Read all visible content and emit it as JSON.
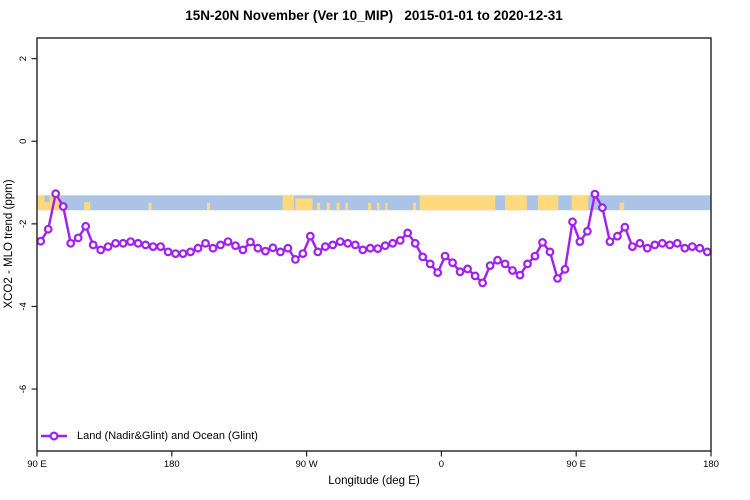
{
  "colors": {
    "line": "#A020F0",
    "marker_fill": "#FFFFFF",
    "ocean_band": "#ABC4E6",
    "land_band": "#FFD97C",
    "axis": "#1F1F1F",
    "background": "#FFFFFF"
  },
  "chart_data": {
    "type": "line",
    "title": "15N-20N November (Ver 10_MIP)   2015-01-01 to 2020-12-31",
    "xlabel": "Longitude (deg E)",
    "ylabel": "XCO2 - MLO trend (ppm)",
    "xlim": [
      90,
      540
    ],
    "ylim": [
      -7.5,
      2.5
    ],
    "grid": false,
    "x_ticks": [
      {
        "v": 90,
        "label": "90 E"
      },
      {
        "v": 180,
        "label": "180"
      },
      {
        "v": 270,
        "label": "90 W"
      },
      {
        "v": 360,
        "label": "0"
      },
      {
        "v": 450,
        "label": "90 E"
      },
      {
        "v": 540,
        "label": "180"
      }
    ],
    "y_ticks": [
      {
        "v": 2,
        "label": "2"
      },
      {
        "v": 0,
        "label": "0"
      },
      {
        "v": -2,
        "label": "-2"
      },
      {
        "v": -4,
        "label": "-4"
      },
      {
        "v": -6,
        "label": "-6"
      }
    ],
    "legend": {
      "position": "bottom-left",
      "entries": [
        {
          "label": "Land (Nadir&Glint) and Ocean (Glint)",
          "color": "#A020F0",
          "marker": "open-circle"
        }
      ]
    },
    "band": {
      "description": "latitude-strip map: ocean in blue, land in orange",
      "y_from": -1.67,
      "y_to": -1.31,
      "ocean_color": "#ABC4E6",
      "land_color": "#FFD97C",
      "land_segments": [
        {
          "from": 90,
          "to": 95,
          "h": 1
        },
        {
          "from": 95,
          "to": 98.5,
          "h": 0.55
        },
        {
          "from": 98.5,
          "to": 105.5,
          "h": 1
        },
        {
          "from": 121.5,
          "to": 125.5,
          "h": 0.55
        },
        {
          "from": 164.5,
          "to": 166.5,
          "h": 0.5
        },
        {
          "from": 203.5,
          "to": 205.5,
          "h": 0.5
        },
        {
          "from": 254,
          "to": 261.5,
          "h": 1
        },
        {
          "from": 262.5,
          "to": 274,
          "h": 0.8
        },
        {
          "from": 277,
          "to": 279,
          "h": 0.5
        },
        {
          "from": 283.5,
          "to": 285.5,
          "h": 0.5
        },
        {
          "from": 290,
          "to": 292,
          "h": 0.5
        },
        {
          "from": 296,
          "to": 297.5,
          "h": 0.5
        },
        {
          "from": 311,
          "to": 313,
          "h": 0.5
        },
        {
          "from": 317,
          "to": 318.5,
          "h": 0.5
        },
        {
          "from": 322.5,
          "to": 324,
          "h": 0.5
        },
        {
          "from": 341,
          "to": 343,
          "h": 0.5
        },
        {
          "from": 345.5,
          "to": 396,
          "h": 1
        },
        {
          "from": 402.5,
          "to": 417,
          "h": 1
        },
        {
          "from": 424.5,
          "to": 438,
          "h": 1
        },
        {
          "from": 447,
          "to": 458,
          "h": 1
        },
        {
          "from": 479,
          "to": 482,
          "h": 0.5
        }
      ]
    },
    "series": [
      {
        "name": "Land (Nadir&Glint) and Ocean (Glint)",
        "x": [
          92.5,
          97.5,
          102.5,
          107.5,
          112.5,
          117.5,
          122.5,
          127.5,
          132.5,
          137.5,
          142.5,
          147.5,
          152.5,
          157.5,
          162.5,
          167.5,
          172.5,
          177.5,
          182.5,
          187.5,
          192.5,
          197.5,
          202.5,
          207.5,
          212.5,
          217.5,
          222.5,
          227.5,
          232.5,
          237.5,
          242.5,
          247.5,
          252.5,
          257.5,
          262.5,
          267.5,
          272.5,
          277.5,
          282.5,
          287.5,
          292.5,
          297.5,
          302.5,
          307.5,
          312.5,
          317.5,
          322.5,
          327.5,
          332.5,
          337.5,
          342.5,
          347.5,
          352.5,
          357.5,
          362.5,
          367.5,
          372.5,
          377.5,
          382.5,
          387.5,
          392.5,
          397.5,
          402.5,
          407.5,
          412.5,
          417.5,
          422.5,
          427.5,
          432.5,
          437.5,
          442.5,
          447.5,
          452.5,
          457.5,
          462.5,
          467.5,
          472.5,
          477.5,
          482.5,
          487.5,
          492.5,
          497.5,
          502.5,
          507.5,
          512.5,
          517.5,
          522.5,
          527.5,
          532.5,
          537.5
        ],
        "y": [
          -2.42,
          -2.13,
          -1.27,
          -1.58,
          -2.47,
          -2.34,
          -2.06,
          -2.51,
          -2.63,
          -2.55,
          -2.47,
          -2.47,
          -2.43,
          -2.47,
          -2.51,
          -2.55,
          -2.55,
          -2.68,
          -2.72,
          -2.72,
          -2.68,
          -2.59,
          -2.47,
          -2.59,
          -2.51,
          -2.43,
          -2.53,
          -2.63,
          -2.44,
          -2.59,
          -2.66,
          -2.58,
          -2.68,
          -2.59,
          -2.86,
          -2.72,
          -2.3,
          -2.68,
          -2.55,
          -2.51,
          -2.43,
          -2.47,
          -2.51,
          -2.63,
          -2.59,
          -2.6,
          -2.53,
          -2.47,
          -2.4,
          -2.22,
          -2.47,
          -2.8,
          -2.97,
          -3.18,
          -2.78,
          -2.94,
          -3.16,
          -3.09,
          -3.26,
          -3.43,
          -3.01,
          -2.88,
          -2.97,
          -3.13,
          -3.24,
          -2.97,
          -2.78,
          -2.45,
          -2.68,
          -3.32,
          -3.1,
          -1.95,
          -2.43,
          -2.18,
          -1.28,
          -1.61,
          -2.43,
          -2.3,
          -2.08,
          -2.55,
          -2.47,
          -2.59,
          -2.51,
          -2.47,
          -2.51,
          -2.47,
          -2.59,
          -2.55,
          -2.59,
          -2.68
        ]
      }
    ]
  }
}
